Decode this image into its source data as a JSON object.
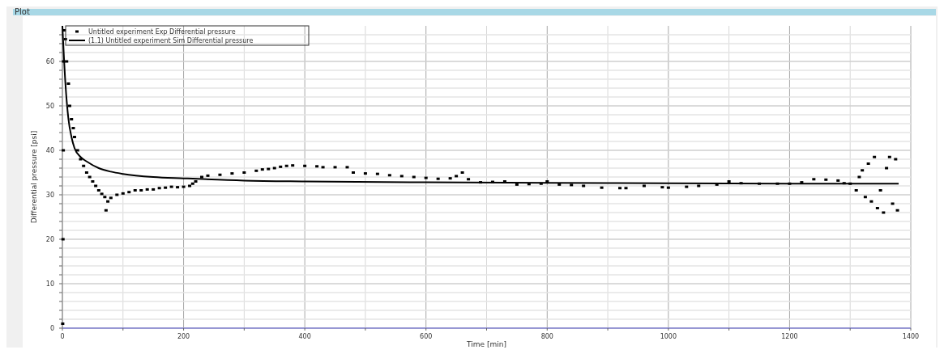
{
  "chart_data": {
    "type": "scatter",
    "title": "Plot",
    "xlabel": "Time [min]",
    "ylabel": "Differential pressure [psi]",
    "xlim": [
      0,
      1400
    ],
    "ylim": [
      0,
      68
    ],
    "xticks": [
      0,
      {
        "value": 100,
        "label": null
      },
      200,
      {
        "value": 300,
        "label": null
      },
      400,
      {
        "value": 500,
        "label": null
      },
      600,
      {
        "value": 700,
        "label": null
      },
      800,
      {
        "value": 900,
        "label": null
      },
      1000,
      {
        "value": 1100,
        "label": null
      },
      1200,
      {
        "value": 1300,
        "label": null
      },
      1400
    ],
    "yticks": [
      0,
      {
        "value": 2,
        "label": null
      },
      {
        "value": 4,
        "label": null
      },
      {
        "value": 6,
        "label": null
      },
      {
        "value": 8,
        "label": null
      },
      10,
      {
        "value": 12,
        "label": null
      },
      {
        "value": 14,
        "label": null
      },
      {
        "value": 16,
        "label": null
      },
      {
        "value": 18,
        "label": null
      },
      20,
      {
        "value": 22,
        "label": null
      },
      {
        "value": 24,
        "label": null
      },
      {
        "value": 26,
        "label": null
      },
      {
        "value": 28,
        "label": null
      },
      30,
      {
        "value": 32,
        "label": null
      },
      {
        "value": 34,
        "label": null
      },
      {
        "value": 36,
        "label": null
      },
      {
        "value": 38,
        "label": null
      },
      40,
      {
        "value": 42,
        "label": null
      },
      {
        "value": 44,
        "label": null
      },
      {
        "value": 46,
        "label": null
      },
      {
        "value": 48,
        "label": null
      },
      50,
      {
        "value": 52,
        "label": null
      },
      {
        "value": 54,
        "label": null
      },
      {
        "value": 56,
        "label": null
      },
      {
        "value": 58,
        "label": null
      },
      60,
      {
        "value": 62,
        "label": null
      },
      {
        "value": 64,
        "label": null
      },
      {
        "value": 66,
        "label": null
      }
    ],
    "grid": true,
    "legend": "top left",
    "series": [
      {
        "name": "Untitled experiment Exp Differential pressure",
        "marker": "square",
        "color": "#000000",
        "x": [
          0.5,
          1,
          1.5,
          2,
          3,
          5,
          7,
          10,
          12,
          15,
          18,
          20,
          25,
          30,
          35,
          40,
          45,
          50,
          55,
          60,
          65,
          70,
          72,
          75,
          80,
          90,
          100,
          110,
          120,
          130,
          140,
          150,
          160,
          170,
          180,
          190,
          200,
          210,
          215,
          220,
          230,
          240,
          260,
          280,
          300,
          320,
          330,
          340,
          350,
          360,
          370,
          380,
          400,
          420,
          430,
          450,
          470,
          480,
          500,
          520,
          540,
          560,
          580,
          600,
          620,
          640,
          650,
          660,
          670,
          690,
          710,
          730,
          750,
          770,
          790,
          800,
          820,
          840,
          860,
          890,
          920,
          930,
          960,
          990,
          1000,
          1030,
          1050,
          1080,
          1100,
          1120,
          1150,
          1180,
          1200,
          1220,
          1240,
          1260,
          1280,
          1290,
          1300,
          1310,
          1315,
          1320,
          1325,
          1330,
          1335,
          1340,
          1345,
          1350,
          1355,
          1360,
          1365,
          1370,
          1375,
          1378
        ],
        "values": [
          1,
          20,
          40,
          60,
          67,
          65,
          60,
          55,
          50,
          47,
          45,
          43,
          40,
          38,
          36.5,
          35,
          34,
          33,
          32,
          31,
          30.2,
          29.5,
          26.5,
          28.5,
          29.3,
          30,
          30.3,
          30.6,
          31,
          31,
          31.2,
          31.2,
          31.5,
          31.6,
          31.8,
          31.7,
          31.8,
          32,
          32.5,
          33,
          34,
          34.3,
          34.5,
          34.8,
          35,
          35.4,
          35.7,
          35.8,
          36,
          36.3,
          36.5,
          36.6,
          36.5,
          36.4,
          36.2,
          36.2,
          36.2,
          35,
          34.8,
          34.7,
          34.4,
          34.2,
          34,
          33.8,
          33.6,
          33.7,
          34.2,
          35,
          33.5,
          32.8,
          32.9,
          33,
          32.3,
          32.4,
          32.5,
          33,
          32.3,
          32.2,
          32,
          31.6,
          31.5,
          31.5,
          32,
          31.7,
          31.6,
          31.8,
          32,
          32.3,
          33,
          32.6,
          32.5,
          32.5,
          32.5,
          32.8,
          33.5,
          33.4,
          33.2,
          32.6,
          32.5,
          31,
          34,
          35.5,
          29.5,
          37,
          28.5,
          38.5,
          27,
          31,
          26,
          36,
          38.5,
          28,
          38,
          26.5
        ]
      },
      {
        "name": "(1.1) Untitled experiment Sim Differential pressure",
        "type": "line",
        "marker": "none",
        "color": "#000000",
        "x": [
          0,
          5,
          10,
          15,
          20,
          30,
          40,
          60,
          80,
          100,
          150,
          200,
          300,
          400,
          600,
          800,
          1000,
          1200,
          1380
        ],
        "values": [
          68,
          55,
          47,
          43,
          40.5,
          38.5,
          37.5,
          36,
          35.2,
          34.7,
          34,
          33.7,
          33.2,
          33,
          32.8,
          32.7,
          32.6,
          32.5,
          32.5
        ]
      }
    ]
  }
}
